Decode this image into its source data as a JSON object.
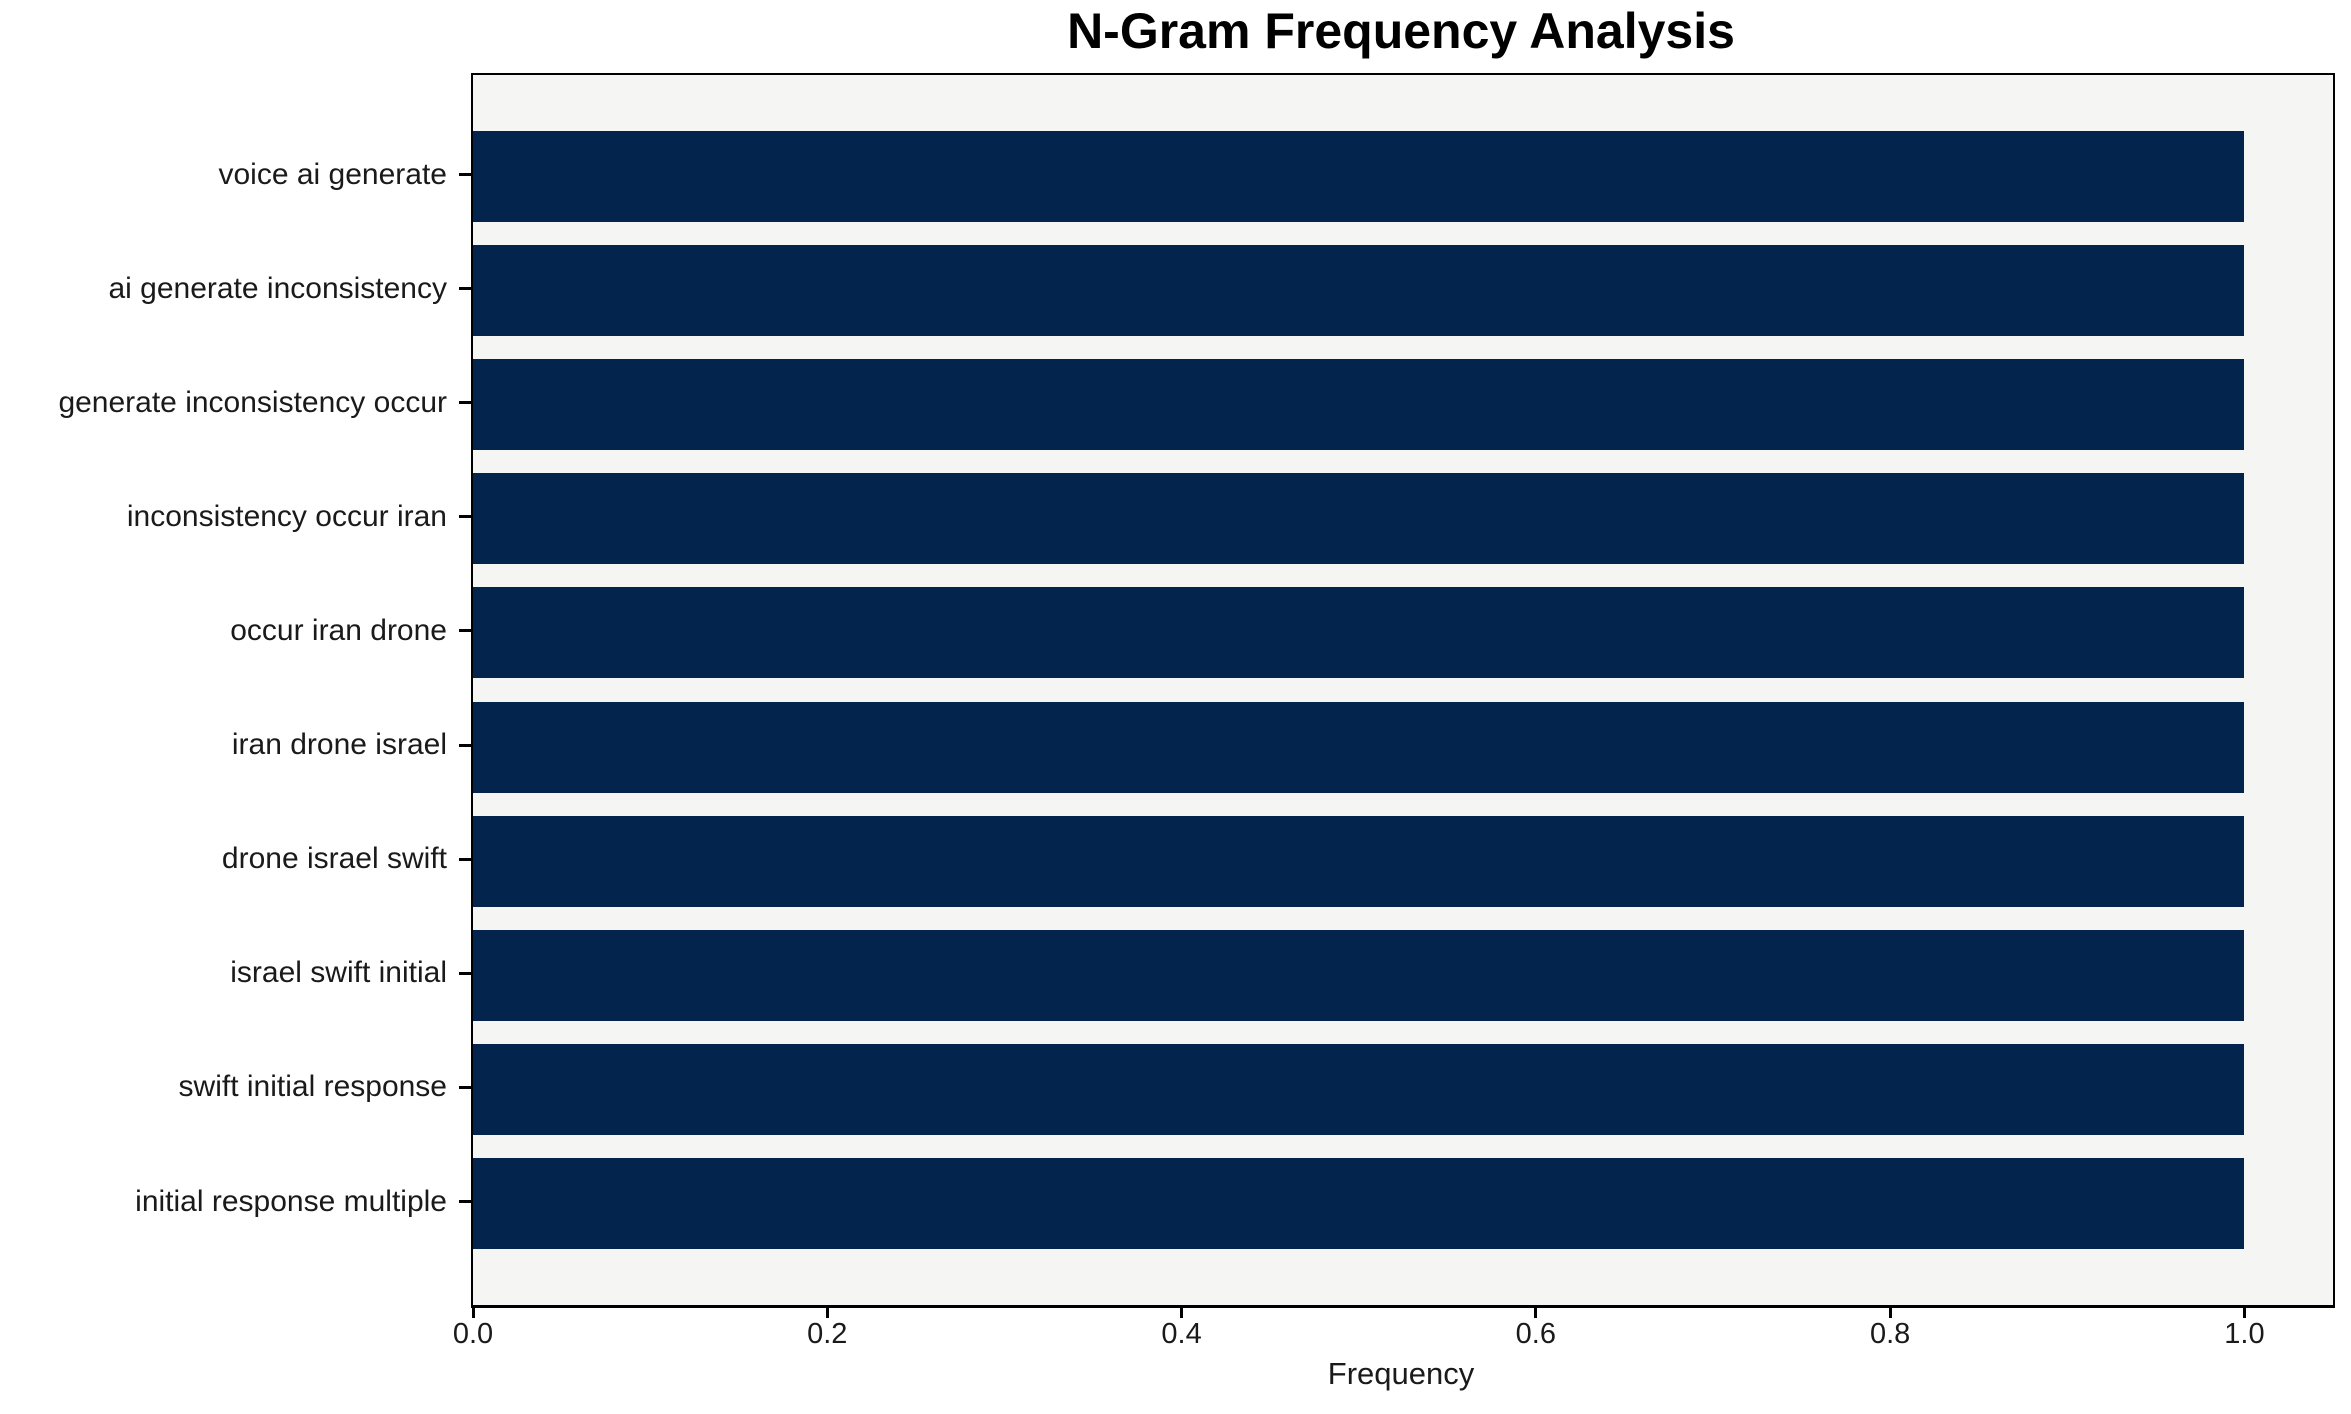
{
  "chart_data": {
    "type": "bar",
    "orientation": "horizontal",
    "title": "N-Gram Frequency Analysis",
    "xlabel": "Frequency",
    "ylabel": "",
    "categories": [
      "voice ai generate",
      "ai generate inconsistency",
      "generate inconsistency occur",
      "inconsistency occur iran",
      "occur iran drone",
      "iran drone israel",
      "drone israel swift",
      "israel swift initial",
      "swift initial response",
      "initial response multiple"
    ],
    "values": [
      1.0,
      1.0,
      1.0,
      1.0,
      1.0,
      1.0,
      1.0,
      1.0,
      1.0,
      1.0
    ],
    "x_tick_labels": [
      "0.0",
      "0.2",
      "0.4",
      "0.6",
      "0.8",
      "1.0"
    ],
    "xlim": [
      0.0,
      1.05
    ],
    "grid": false,
    "legend": null,
    "bar_color": "#02244d",
    "plot_bg_color": "#f5f5f4",
    "axis_color": "#000000"
  }
}
